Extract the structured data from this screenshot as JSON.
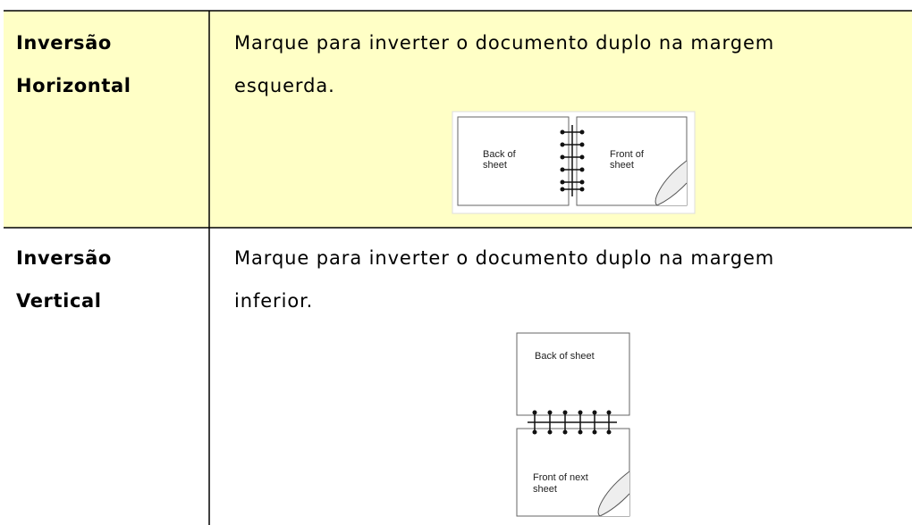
{
  "table": {
    "rows": [
      {
        "label": [
          "Inversão",
          "Horizontal"
        ],
        "description": [
          "Marque para inverter o documento duplo na margem",
          "esquerda."
        ],
        "figure": {
          "left": [
            "Back of",
            "sheet"
          ],
          "right": [
            "Front of",
            "sheet"
          ]
        }
      },
      {
        "label": [
          "Inversão",
          "Vertical"
        ],
        "description": [
          "Marque para inverter o documento duplo na margem",
          "inferior."
        ],
        "figure": {
          "top": [
            "Back of sheet"
          ],
          "bottom": [
            "Front of next",
            "sheet"
          ]
        }
      }
    ]
  }
}
